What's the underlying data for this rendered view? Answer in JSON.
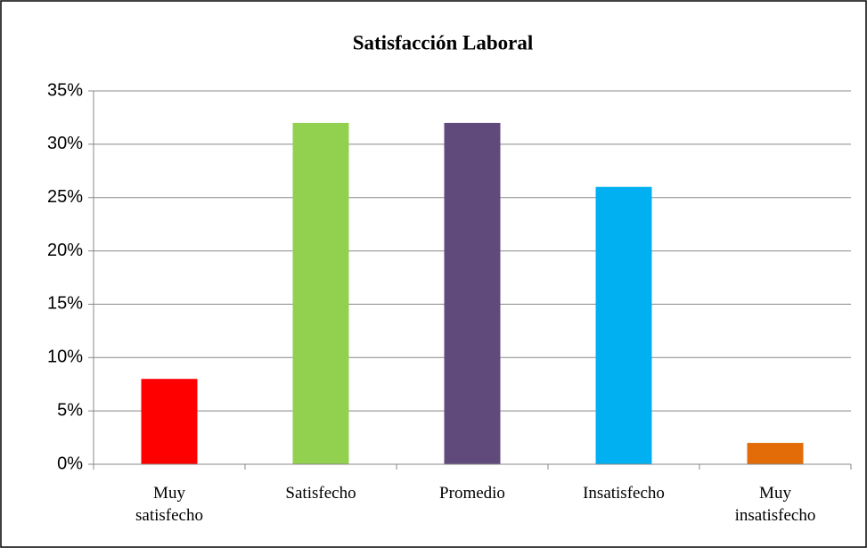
{
  "chart_data": {
    "type": "bar",
    "title": "Satisfacción Laboral",
    "categories": [
      "Muy\nsatisfecho",
      "Satisfecho",
      "Promedio",
      "Insatisfecho",
      "Muy\ninsatisfecho"
    ],
    "values": [
      8,
      32,
      32,
      26,
      2
    ],
    "colors": [
      "#ff0000",
      "#92d050",
      "#604a7b",
      "#00b0f0",
      "#e36c09"
    ],
    "ylim": [
      0,
      35
    ],
    "yticks": [
      {
        "value": 0,
        "label": "0%"
      },
      {
        "value": 5,
        "label": "5%"
      },
      {
        "value": 10,
        "label": "10%"
      },
      {
        "value": 15,
        "label": "15%"
      },
      {
        "value": 20,
        "label": "20%"
      },
      {
        "value": 25,
        "label": "25%"
      },
      {
        "value": 30,
        "label": "30%"
      },
      {
        "value": 35,
        "label": "35%"
      }
    ],
    "grid": true
  }
}
